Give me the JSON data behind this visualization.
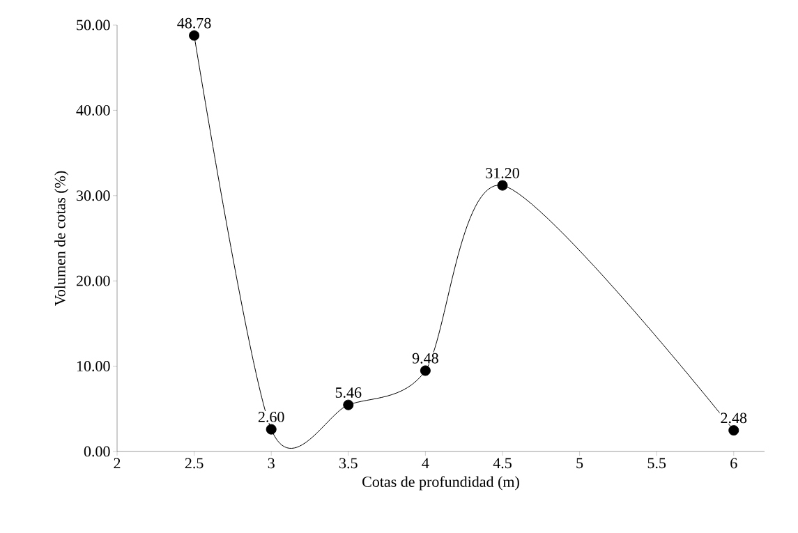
{
  "chart_data": {
    "type": "line",
    "xlabel": "Cotas de profundidad (m)",
    "ylabel": "Volumen de cotas (%)",
    "x": [
      2.5,
      3,
      3.5,
      4,
      4.5,
      6
    ],
    "series": [
      {
        "color": "#000000",
        "values": [
          48.78,
          2.6,
          5.46,
          9.48,
          31.2,
          2.48
        ]
      }
    ],
    "value_labels": [
      "48.78",
      "2.60",
      "5.46",
      "9.48",
      "31.20",
      "2.48"
    ],
    "xlim": [
      2,
      6.2
    ],
    "xticks": [
      2,
      2.5,
      3,
      3.5,
      4,
      4.5,
      5,
      5.5,
      6
    ],
    "ylim": [
      0,
      50
    ],
    "yticks": [
      {
        "value": 0,
        "label": "0.00"
      },
      {
        "value": 10,
        "label": "10.00"
      },
      {
        "value": 20,
        "label": "20.00"
      },
      {
        "value": 30,
        "label": "30.00"
      },
      {
        "value": 40,
        "label": "40.00"
      },
      {
        "value": 50,
        "label": "50.00"
      }
    ],
    "marker": "circle",
    "line_style": "solid"
  }
}
